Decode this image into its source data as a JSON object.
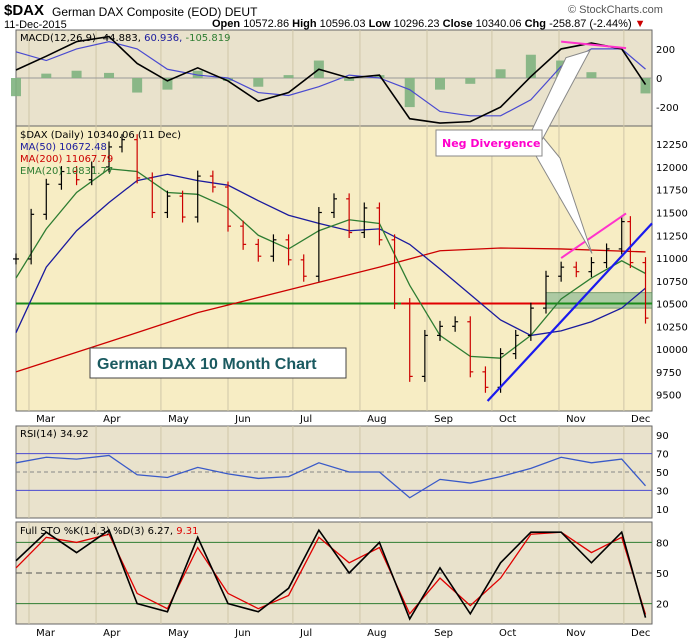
{
  "header": {
    "symbol": "$DAX",
    "name": "German DAX Composite (EOD)",
    "exchange": "DEUT",
    "date": "11-Dec-2015",
    "open_label": "Open",
    "open": "10572.86",
    "high_label": "High",
    "high": "10596.03",
    "low_label": "Low",
    "low": "10296.23",
    "close_label": "Close",
    "close": "10340.06",
    "chg_label": "Chg",
    "chg": "-258.87 (-2.44%)",
    "chg_arrow": "▼",
    "watermark": "© StockCharts.com"
  },
  "colors": {
    "price_up": "#000000",
    "price_down": "#cc0000",
    "ma50": "#1a1a9e",
    "ma200": "#cc0000",
    "ema20": "#2e7d32",
    "trend": "#1a1aee",
    "divergence": "#ff33cc",
    "support": "#1a8a1a",
    "panel_bg_price": "#f7edc4",
    "panel_bg_ind": "#e9e2cc"
  },
  "macd": {
    "label": "MACD(12,26,9)",
    "macd_value": "-44.883",
    "signal_value": "60.936",
    "hist_value": "-105.819",
    "y_ticks": [
      "200",
      "0",
      "-200"
    ]
  },
  "price": {
    "label": "$DAX (Daily) 10340.06 (11 Dec)",
    "ma50_label": "MA(50) 10672.48",
    "ma200_label": "MA(200) 11067.79",
    "ema20_label": "EMA(20) 10831.77",
    "y_ticks": [
      "12250",
      "12000",
      "11750",
      "11500",
      "11250",
      "11000",
      "10750",
      "10500",
      "10250",
      "10000",
      "9750",
      "9500"
    ]
  },
  "annotations": {
    "neg_divergence": "Neg Divergence",
    "title_box": "German DAX 10 Month Chart"
  },
  "rsi": {
    "label": "RSI(14) 34.92",
    "y_ticks": [
      "90",
      "70",
      "50",
      "30",
      "10"
    ]
  },
  "sto": {
    "label_prefix": "Full STO %K(14,3) %D(3)",
    "k_value": "6.27",
    "d_value": "9.31",
    "y_ticks": [
      "80",
      "50",
      "20"
    ]
  },
  "x_axis": {
    "months": [
      "Mar",
      "Apr",
      "May",
      "Jun",
      "Jul",
      "Aug",
      "Sep",
      "Oct",
      "Nov",
      "Dec"
    ]
  },
  "chart_data": {
    "type": "line",
    "months": [
      "Mar",
      "Apr",
      "May",
      "Jun",
      "Jul",
      "Aug",
      "Sep",
      "Oct",
      "Nov",
      "Dec"
    ],
    "close_series": [
      {
        "date": "2015-02-23",
        "close": 10990
      },
      {
        "date": "2015-03-02",
        "close": 11480
      },
      {
        "date": "2015-03-09",
        "close": 11810
      },
      {
        "date": "2015-03-16",
        "close": 11950
      },
      {
        "date": "2015-03-23",
        "close": 11860
      },
      {
        "date": "2015-03-30",
        "close": 12000
      },
      {
        "date": "2015-04-07",
        "close": 12220
      },
      {
        "date": "2015-04-13",
        "close": 12300
      },
      {
        "date": "2015-04-20",
        "close": 11880
      },
      {
        "date": "2015-04-27",
        "close": 11500
      },
      {
        "date": "2015-05-04",
        "close": 11680
      },
      {
        "date": "2015-05-11",
        "close": 11450
      },
      {
        "date": "2015-05-18",
        "close": 11900
      },
      {
        "date": "2015-05-25",
        "close": 11780
      },
      {
        "date": "2015-06-01",
        "close": 11350
      },
      {
        "date": "2015-06-08",
        "close": 11150
      },
      {
        "date": "2015-06-15",
        "close": 11020
      },
      {
        "date": "2015-06-22",
        "close": 11200
      },
      {
        "date": "2015-06-29",
        "close": 10980
      },
      {
        "date": "2015-07-06",
        "close": 10800
      },
      {
        "date": "2015-07-13",
        "close": 11500
      },
      {
        "date": "2015-07-20",
        "close": 11650
      },
      {
        "date": "2015-07-27",
        "close": 11280
      },
      {
        "date": "2015-08-03",
        "close": 11550
      },
      {
        "date": "2015-08-10",
        "close": 11200
      },
      {
        "date": "2015-08-17",
        "close": 10500
      },
      {
        "date": "2015-08-24",
        "close": 9700
      },
      {
        "date": "2015-08-31",
        "close": 10150
      },
      {
        "date": "2015-09-07",
        "close": 10250
      },
      {
        "date": "2015-09-14",
        "close": 10300
      },
      {
        "date": "2015-09-21",
        "close": 9750
      },
      {
        "date": "2015-09-28",
        "close": 9580
      },
      {
        "date": "2015-10-05",
        "close": 9950
      },
      {
        "date": "2015-10-12",
        "close": 10150
      },
      {
        "date": "2015-10-19",
        "close": 10450
      },
      {
        "date": "2015-10-26",
        "close": 10800
      },
      {
        "date": "2015-11-02",
        "close": 10900
      },
      {
        "date": "2015-11-09",
        "close": 10850
      },
      {
        "date": "2015-11-16",
        "close": 10950
      },
      {
        "date": "2015-11-23",
        "close": 11100
      },
      {
        "date": "2015-11-30",
        "close": 11400
      },
      {
        "date": "2015-12-04",
        "close": 10950
      },
      {
        "date": "2015-12-11",
        "close": 10340
      }
    ],
    "ma50_series": [
      {
        "date": "2015-02-23",
        "value": 10180
      },
      {
        "date": "2015-03-09",
        "value": 10900
      },
      {
        "date": "2015-03-23",
        "value": 11300
      },
      {
        "date": "2015-04-07",
        "value": 11610
      },
      {
        "date": "2015-04-20",
        "value": 11850
      },
      {
        "date": "2015-05-04",
        "value": 11920
      },
      {
        "date": "2015-05-18",
        "value": 11850
      },
      {
        "date": "2015-06-01",
        "value": 11800
      },
      {
        "date": "2015-06-15",
        "value": 11630
      },
      {
        "date": "2015-06-29",
        "value": 11470
      },
      {
        "date": "2015-07-13",
        "value": 11380
      },
      {
        "date": "2015-07-27",
        "value": 11300
      },
      {
        "date": "2015-08-10",
        "value": 11320
      },
      {
        "date": "2015-08-24",
        "value": 11150
      },
      {
        "date": "2015-09-07",
        "value": 10880
      },
      {
        "date": "2015-09-21",
        "value": 10600
      },
      {
        "date": "2015-10-05",
        "value": 10320
      },
      {
        "date": "2015-10-19",
        "value": 10150
      },
      {
        "date": "2015-11-02",
        "value": 10200
      },
      {
        "date": "2015-11-16",
        "value": 10300
      },
      {
        "date": "2015-11-30",
        "value": 10450
      },
      {
        "date": "2015-12-11",
        "value": 10670
      }
    ],
    "ma200_series": [
      {
        "date": "2015-02-23",
        "value": 9750
      },
      {
        "date": "2015-04-07",
        "value": 10080
      },
      {
        "date": "2015-05-18",
        "value": 10400
      },
      {
        "date": "2015-06-29",
        "value": 10650
      },
      {
        "date": "2015-08-10",
        "value": 10900
      },
      {
        "date": "2015-09-07",
        "value": 11080
      },
      {
        "date": "2015-10-05",
        "value": 11110
      },
      {
        "date": "2015-11-02",
        "value": 11100
      },
      {
        "date": "2015-12-11",
        "value": 11067
      }
    ],
    "ema20_series": [
      {
        "date": "2015-02-23",
        "value": 10780
      },
      {
        "date": "2015-03-09",
        "value": 11320
      },
      {
        "date": "2015-03-23",
        "value": 11720
      },
      {
        "date": "2015-04-07",
        "value": 11980
      },
      {
        "date": "2015-04-20",
        "value": 11950
      },
      {
        "date": "2015-05-04",
        "value": 11720
      },
      {
        "date": "2015-05-18",
        "value": 11700
      },
      {
        "date": "2015-06-01",
        "value": 11550
      },
      {
        "date": "2015-06-15",
        "value": 11250
      },
      {
        "date": "2015-06-29",
        "value": 11100
      },
      {
        "date": "2015-07-13",
        "value": 11300
      },
      {
        "date": "2015-07-27",
        "value": 11420
      },
      {
        "date": "2015-08-10",
        "value": 11380
      },
      {
        "date": "2015-08-24",
        "value": 10700
      },
      {
        "date": "2015-09-07",
        "value": 10150
      },
      {
        "date": "2015-09-21",
        "value": 9920
      },
      {
        "date": "2015-10-05",
        "value": 9900
      },
      {
        "date": "2015-10-19",
        "value": 10150
      },
      {
        "date": "2015-11-02",
        "value": 10550
      },
      {
        "date": "2015-11-16",
        "value": 10780
      },
      {
        "date": "2015-11-30",
        "value": 10970
      },
      {
        "date": "2015-12-11",
        "value": 10830
      }
    ],
    "trendline": [
      {
        "date": "2015-09-29",
        "value": 9430
      },
      {
        "date": "2015-12-14",
        "value": 11380
      }
    ],
    "price_divergence_line": [
      {
        "date": "2015-11-02",
        "value": 11000
      },
      {
        "date": "2015-12-02",
        "value": 11490
      }
    ],
    "support_level": 10500,
    "support_zone": {
      "start": "2015-10-26",
      "end": "2015-12-14",
      "low": 10450,
      "high": 10620
    },
    "macd_series": [
      {
        "date": "2015-02-23",
        "macd": 55,
        "signal": 180,
        "hist": -125
      },
      {
        "date": "2015-03-09",
        "macd": 150,
        "signal": 120,
        "hist": 30
      },
      {
        "date": "2015-03-23",
        "macd": 250,
        "signal": 200,
        "hist": 50
      },
      {
        "date": "2015-04-07",
        "macd": 285,
        "signal": 250,
        "hist": 35
      },
      {
        "date": "2015-04-20",
        "macd": 100,
        "signal": 200,
        "hist": -100
      },
      {
        "date": "2015-05-04",
        "macd": -20,
        "signal": 60,
        "hist": -80
      },
      {
        "date": "2015-05-18",
        "macd": 70,
        "signal": 20,
        "hist": 50
      },
      {
        "date": "2015-06-01",
        "macd": -20,
        "signal": 0,
        "hist": -20
      },
      {
        "date": "2015-06-15",
        "macd": -160,
        "signal": -100,
        "hist": -60
      },
      {
        "date": "2015-06-29",
        "macd": -100,
        "signal": -120,
        "hist": 20
      },
      {
        "date": "2015-07-13",
        "macd": 60,
        "signal": -60,
        "hist": 120
      },
      {
        "date": "2015-07-27",
        "macd": 0,
        "signal": 20,
        "hist": -20
      },
      {
        "date": "2015-08-10",
        "macd": 20,
        "signal": 0,
        "hist": 20
      },
      {
        "date": "2015-08-24",
        "macd": -280,
        "signal": -80,
        "hist": -200
      },
      {
        "date": "2015-09-07",
        "macd": -310,
        "signal": -230,
        "hist": -80
      },
      {
        "date": "2015-09-21",
        "macd": -300,
        "signal": -260,
        "hist": -40
      },
      {
        "date": "2015-10-05",
        "macd": -200,
        "signal": -260,
        "hist": 60
      },
      {
        "date": "2015-10-19",
        "macd": 10,
        "signal": -150,
        "hist": 160
      },
      {
        "date": "2015-11-02",
        "macd": 200,
        "signal": 80,
        "hist": 120
      },
      {
        "date": "2015-11-16",
        "macd": 240,
        "signal": 200,
        "hist": 40
      },
      {
        "date": "2015-11-30",
        "macd": 200,
        "signal": 200,
        "hist": 0
      },
      {
        "date": "2015-12-11",
        "macd": -45,
        "signal": 61,
        "hist": -106
      }
    ],
    "macd_divergence_line": [
      {
        "date": "2015-11-02",
        "value": 250
      },
      {
        "date": "2015-12-02",
        "value": 205
      }
    ],
    "rsi_series": [
      {
        "date": "2015-02-23",
        "value": 60
      },
      {
        "date": "2015-03-09",
        "value": 66
      },
      {
        "date": "2015-03-23",
        "value": 64
      },
      {
        "date": "2015-04-07",
        "value": 68
      },
      {
        "date": "2015-04-20",
        "value": 47
      },
      {
        "date": "2015-05-04",
        "value": 44
      },
      {
        "date": "2015-05-18",
        "value": 55
      },
      {
        "date": "2015-06-01",
        "value": 48
      },
      {
        "date": "2015-06-15",
        "value": 43
      },
      {
        "date": "2015-06-29",
        "value": 45
      },
      {
        "date": "2015-07-13",
        "value": 60
      },
      {
        "date": "2015-07-27",
        "value": 50
      },
      {
        "date": "2015-08-10",
        "value": 50
      },
      {
        "date": "2015-08-24",
        "value": 22
      },
      {
        "date": "2015-09-07",
        "value": 42
      },
      {
        "date": "2015-09-21",
        "value": 38
      },
      {
        "date": "2015-10-05",
        "value": 45
      },
      {
        "date": "2015-10-19",
        "value": 54
      },
      {
        "date": "2015-11-02",
        "value": 66
      },
      {
        "date": "2015-11-16",
        "value": 60
      },
      {
        "date": "2015-11-30",
        "value": 64
      },
      {
        "date": "2015-12-11",
        "value": 35
      }
    ],
    "sto_series": [
      {
        "date": "2015-02-23",
        "k": 62,
        "d": 55
      },
      {
        "date": "2015-03-09",
        "k": 90,
        "d": 85
      },
      {
        "date": "2015-03-23",
        "k": 70,
        "d": 80
      },
      {
        "date": "2015-04-07",
        "k": 92,
        "d": 88
      },
      {
        "date": "2015-04-20",
        "k": 20,
        "d": 30
      },
      {
        "date": "2015-05-04",
        "k": 12,
        "d": 15
      },
      {
        "date": "2015-05-18",
        "k": 85,
        "d": 75
      },
      {
        "date": "2015-06-01",
        "k": 20,
        "d": 30
      },
      {
        "date": "2015-06-15",
        "k": 12,
        "d": 15
      },
      {
        "date": "2015-06-29",
        "k": 35,
        "d": 28
      },
      {
        "date": "2015-07-13",
        "k": 92,
        "d": 85
      },
      {
        "date": "2015-07-27",
        "k": 50,
        "d": 60
      },
      {
        "date": "2015-08-10",
        "k": 80,
        "d": 75
      },
      {
        "date": "2015-08-24",
        "k": 5,
        "d": 10
      },
      {
        "date": "2015-09-07",
        "k": 55,
        "d": 45
      },
      {
        "date": "2015-09-21",
        "k": 10,
        "d": 18
      },
      {
        "date": "2015-10-05",
        "k": 60,
        "d": 45
      },
      {
        "date": "2015-10-19",
        "k": 90,
        "d": 88
      },
      {
        "date": "2015-11-02",
        "k": 90,
        "d": 90
      },
      {
        "date": "2015-11-16",
        "k": 60,
        "d": 70
      },
      {
        "date": "2015-11-30",
        "k": 90,
        "d": 85
      },
      {
        "date": "2015-12-11",
        "k": 6.27,
        "d": 9.31
      }
    ]
  }
}
